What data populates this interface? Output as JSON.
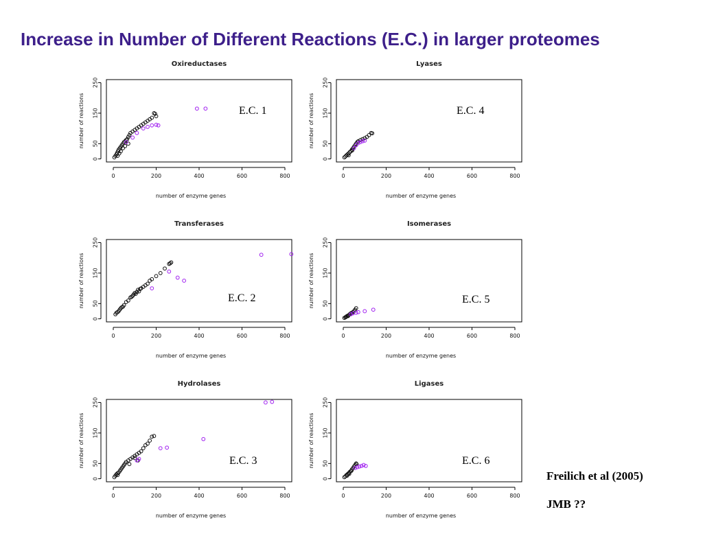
{
  "slide": {
    "title": "Increase in Number of Different Reactions (E.C.) in larger proteomes",
    "citation_line1": "Freilich et al  (2005)",
    "citation_line2": "JMB ??"
  },
  "colors": {
    "title": "#3d1f8a",
    "series_black": "#111111",
    "series_purple": "#a020f0"
  },
  "chart_data": [
    {
      "type": "scatter",
      "title": "Oxireductases",
      "annotation": "E.C. 1",
      "xlabel": "number of enzyme genes",
      "ylabel": "number of reactions",
      "xlim": [
        0,
        800
      ],
      "ylim": [
        0,
        250
      ],
      "xticks": [
        0,
        200,
        400,
        600,
        800
      ],
      "yticks": [
        0,
        50,
        150,
        250
      ],
      "series": [
        {
          "color": "black",
          "points": [
            [
              5,
              5
            ],
            [
              10,
              10
            ],
            [
              15,
              15
            ],
            [
              18,
              20
            ],
            [
              22,
              25
            ],
            [
              25,
              30
            ],
            [
              30,
              35
            ],
            [
              35,
              40
            ],
            [
              40,
              45
            ],
            [
              45,
              50
            ],
            [
              50,
              55
            ],
            [
              55,
              58
            ],
            [
              60,
              62
            ],
            [
              65,
              65
            ],
            [
              70,
              72
            ],
            [
              75,
              78
            ],
            [
              80,
              85
            ],
            [
              90,
              90
            ],
            [
              100,
              95
            ],
            [
              110,
              100
            ],
            [
              120,
              105
            ],
            [
              130,
              110
            ],
            [
              140,
              115
            ],
            [
              150,
              120
            ],
            [
              160,
              125
            ],
            [
              170,
              130
            ],
            [
              180,
              135
            ],
            [
              190,
              150
            ],
            [
              195,
              148
            ],
            [
              200,
              140
            ],
            [
              35,
              25
            ],
            [
              45,
              35
            ],
            [
              70,
              50
            ],
            [
              20,
              10
            ],
            [
              28,
              18
            ],
            [
              55,
              42
            ]
          ]
        },
        {
          "color": "purple",
          "points": [
            [
              60,
              55
            ],
            [
              90,
              70
            ],
            [
              110,
              85
            ],
            [
              140,
              100
            ],
            [
              160,
              105
            ],
            [
              180,
              110
            ],
            [
              200,
              112
            ],
            [
              210,
              110
            ],
            [
              390,
              165
            ],
            [
              430,
              165
            ]
          ]
        }
      ]
    },
    {
      "type": "scatter",
      "title": "Lyases",
      "annotation": "E.C. 4",
      "xlabel": "number of enzyme genes",
      "ylabel": "number of reactions",
      "xlim": [
        0,
        800
      ],
      "ylim": [
        0,
        250
      ],
      "xticks": [
        0,
        200,
        400,
        600,
        800
      ],
      "yticks": [
        0,
        50,
        150,
        250
      ],
      "series": [
        {
          "color": "black",
          "points": [
            [
              5,
              5
            ],
            [
              10,
              8
            ],
            [
              15,
              12
            ],
            [
              20,
              15
            ],
            [
              25,
              18
            ],
            [
              30,
              22
            ],
            [
              35,
              25
            ],
            [
              40,
              30
            ],
            [
              45,
              35
            ],
            [
              50,
              40
            ],
            [
              55,
              45
            ],
            [
              60,
              50
            ],
            [
              65,
              55
            ],
            [
              70,
              58
            ],
            [
              80,
              62
            ],
            [
              90,
              65
            ],
            [
              100,
              68
            ],
            [
              110,
              72
            ],
            [
              120,
              78
            ],
            [
              130,
              85
            ],
            [
              135,
              84
            ],
            [
              25,
              12
            ],
            [
              42,
              28
            ]
          ]
        },
        {
          "color": "purple",
          "points": [
            [
              50,
              35
            ],
            [
              60,
              45
            ],
            [
              70,
              52
            ],
            [
              80,
              55
            ],
            [
              90,
              58
            ],
            [
              100,
              60
            ]
          ]
        }
      ]
    },
    {
      "type": "scatter",
      "title": "Transferases",
      "annotation": "E.C. 2",
      "xlabel": "number of enzyme genes",
      "ylabel": "number of reactions",
      "xlim": [
        0,
        800
      ],
      "ylim": [
        0,
        250
      ],
      "xticks": [
        0,
        200,
        400,
        600,
        800
      ],
      "yticks": [
        0,
        50,
        150,
        250
      ],
      "series": [
        {
          "color": "black",
          "points": [
            [
              10,
              15
            ],
            [
              15,
              20
            ],
            [
              20,
              22
            ],
            [
              25,
              25
            ],
            [
              30,
              30
            ],
            [
              35,
              35
            ],
            [
              40,
              38
            ],
            [
              45,
              40
            ],
            [
              50,
              45
            ],
            [
              60,
              55
            ],
            [
              70,
              60
            ],
            [
              80,
              70
            ],
            [
              90,
              75
            ],
            [
              95,
              80
            ],
            [
              100,
              85
            ],
            [
              110,
              88
            ],
            [
              120,
              90
            ],
            [
              130,
              100
            ],
            [
              140,
              105
            ],
            [
              150,
              110
            ],
            [
              160,
              115
            ],
            [
              170,
              125
            ],
            [
              180,
              130
            ],
            [
              200,
              140
            ],
            [
              220,
              150
            ],
            [
              240,
              165
            ],
            [
              260,
              180
            ],
            [
              265,
              182
            ],
            [
              270,
              185
            ],
            [
              85,
              72
            ],
            [
              105,
              82
            ],
            [
              115,
              95
            ],
            [
              125,
              98
            ]
          ]
        },
        {
          "color": "purple",
          "points": [
            [
              180,
              100
            ],
            [
              260,
              155
            ],
            [
              300,
              135
            ],
            [
              330,
              125
            ],
            [
              690,
              210
            ],
            [
              830,
              212
            ]
          ]
        }
      ]
    },
    {
      "type": "scatter",
      "title": "Isomerases",
      "annotation": "E.C. 5",
      "xlabel": "number of enzyme genes",
      "ylabel": "number of reactions",
      "xlim": [
        0,
        800
      ],
      "ylim": [
        0,
        250
      ],
      "xticks": [
        0,
        200,
        400,
        600,
        800
      ],
      "yticks": [
        0,
        50,
        150,
        250
      ],
      "series": [
        {
          "color": "black",
          "points": [
            [
              5,
              3
            ],
            [
              10,
              5
            ],
            [
              15,
              8
            ],
            [
              20,
              10
            ],
            [
              25,
              12
            ],
            [
              30,
              15
            ],
            [
              35,
              18
            ],
            [
              40,
              20
            ],
            [
              45,
              22
            ],
            [
              50,
              25
            ],
            [
              55,
              30
            ],
            [
              60,
              35
            ],
            [
              12,
              6
            ],
            [
              22,
              9
            ]
          ]
        },
        {
          "color": "purple",
          "points": [
            [
              35,
              15
            ],
            [
              45,
              18
            ],
            [
              60,
              20
            ],
            [
              70,
              22
            ],
            [
              100,
              25
            ],
            [
              140,
              30
            ]
          ]
        }
      ]
    },
    {
      "type": "scatter",
      "title": "Hydrolases",
      "annotation": "E.C. 3",
      "xlabel": "number of enzyme genes",
      "ylabel": "number of reactions",
      "xlim": [
        0,
        800
      ],
      "ylim": [
        0,
        250
      ],
      "xticks": [
        0,
        200,
        400,
        600,
        800
      ],
      "yticks": [
        0,
        50,
        150,
        250
      ],
      "series": [
        {
          "color": "black",
          "points": [
            [
              5,
              5
            ],
            [
              10,
              10
            ],
            [
              15,
              15
            ],
            [
              20,
              18
            ],
            [
              25,
              20
            ],
            [
              30,
              25
            ],
            [
              35,
              30
            ],
            [
              40,
              35
            ],
            [
              45,
              40
            ],
            [
              50,
              45
            ],
            [
              55,
              50
            ],
            [
              60,
              55
            ],
            [
              70,
              60
            ],
            [
              80,
              65
            ],
            [
              90,
              70
            ],
            [
              100,
              75
            ],
            [
              110,
              80
            ],
            [
              120,
              85
            ],
            [
              130,
              90
            ],
            [
              140,
              100
            ],
            [
              150,
              110
            ],
            [
              160,
              115
            ],
            [
              170,
              125
            ],
            [
              180,
              138
            ],
            [
              190,
              140
            ],
            [
              100,
              68
            ],
            [
              115,
              60
            ],
            [
              75,
              48
            ],
            [
              20,
              12
            ]
          ]
        },
        {
          "color": "purple",
          "points": [
            [
              110,
              60
            ],
            [
              120,
              65
            ],
            [
              220,
              100
            ],
            [
              250,
              102
            ],
            [
              420,
              130
            ],
            [
              710,
              250
            ],
            [
              740,
              252
            ]
          ]
        }
      ]
    },
    {
      "type": "scatter",
      "title": "Ligases",
      "annotation": "E.C. 6",
      "xlabel": "number of enzyme genes",
      "ylabel": "number of reactions",
      "xlim": [
        0,
        800
      ],
      "ylim": [
        0,
        250
      ],
      "xticks": [
        0,
        200,
        400,
        600,
        800
      ],
      "yticks": [
        0,
        50,
        150,
        250
      ],
      "series": [
        {
          "color": "black",
          "points": [
            [
              5,
              5
            ],
            [
              10,
              8
            ],
            [
              15,
              12
            ],
            [
              20,
              15
            ],
            [
              25,
              18
            ],
            [
              30,
              22
            ],
            [
              35,
              25
            ],
            [
              40,
              30
            ],
            [
              45,
              35
            ],
            [
              50,
              40
            ],
            [
              55,
              45
            ],
            [
              60,
              50
            ],
            [
              62,
              48
            ],
            [
              18,
              10
            ],
            [
              28,
              16
            ],
            [
              38,
              26
            ]
          ]
        },
        {
          "color": "purple",
          "points": [
            [
              55,
              35
            ],
            [
              65,
              38
            ],
            [
              75,
              40
            ],
            [
              85,
              42
            ],
            [
              95,
              45
            ],
            [
              105,
              42
            ]
          ]
        }
      ]
    }
  ]
}
